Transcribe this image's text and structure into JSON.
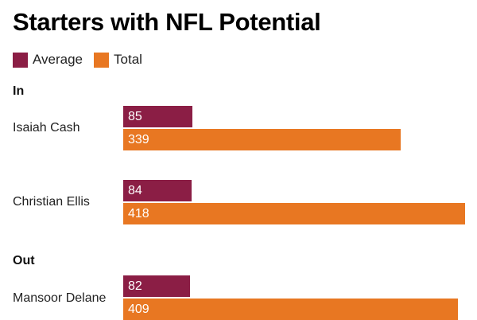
{
  "chart_data": {
    "type": "bar",
    "orientation": "horizontal",
    "title": "Starters with NFL Potential",
    "legend": [
      {
        "name": "Average",
        "color": "#8b1e45"
      },
      {
        "name": "Total",
        "color": "#e87722"
      }
    ],
    "legend_placement": "top-left",
    "grid": false,
    "xlim": [
      0,
      418
    ],
    "groups": [
      {
        "label": "In",
        "rows": [
          {
            "name": "Isaiah Cash",
            "average": 85,
            "total": 339
          },
          {
            "name": "Christian Ellis",
            "average": 84,
            "total": 418
          }
        ]
      },
      {
        "label": "Out",
        "rows": [
          {
            "name": "Mansoor Delane",
            "average": 82,
            "total": 409
          }
        ]
      }
    ]
  }
}
